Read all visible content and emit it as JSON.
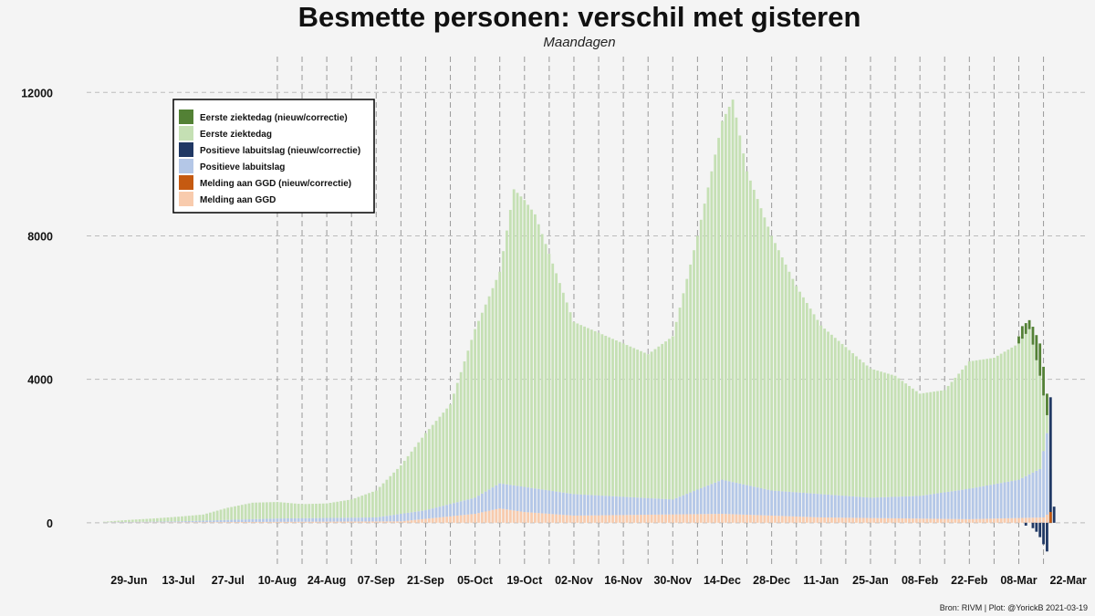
{
  "title": "Besmette personen: verschil met gisteren",
  "subtitle": "Maandagen",
  "caption": "Bron: RIVM | Plot: @YorickB  2021-03-19",
  "chart_data": {
    "type": "bar",
    "stacked": true,
    "title": "Besmette personen: verschil met gisteren",
    "subtitle": "Maandagen",
    "xlabel": "",
    "ylabel": "",
    "grid": true,
    "legend_position": "top-left",
    "x_start": "2020-06-22",
    "x_end": "2021-03-18",
    "xlim": [
      "2020-06-17",
      "2021-03-27"
    ],
    "ylim": [
      -1200,
      13000
    ],
    "yticks": [
      0,
      4000,
      8000,
      12000
    ],
    "xticks": [
      "29-Jun",
      "13-Jul",
      "27-Jul",
      "10-Aug",
      "24-Aug",
      "07-Sep",
      "21-Sep",
      "05-Oct",
      "19-Oct",
      "02-Nov",
      "16-Nov",
      "30-Nov",
      "14-Dec",
      "28-Dec",
      "11-Jan",
      "25-Jan",
      "08-Feb",
      "22-Feb",
      "08-Mar",
      "22-Mar"
    ],
    "xtick_dates": [
      "2020-06-29",
      "2020-07-13",
      "2020-07-27",
      "2020-08-10",
      "2020-08-24",
      "2020-09-07",
      "2020-09-21",
      "2020-10-05",
      "2020-10-19",
      "2020-11-02",
      "2020-11-16",
      "2020-11-30",
      "2020-12-14",
      "2020-12-28",
      "2021-01-11",
      "2021-01-25",
      "2021-02-08",
      "2021-02-22",
      "2021-03-08",
      "2021-03-22"
    ],
    "monday_lines_from": "2020-08-10",
    "legend": [
      {
        "name": "Eerste ziektedag (nieuw/correctie)",
        "color": "#538135"
      },
      {
        "name": "Eerste ziektedag",
        "color": "#c5e0b4"
      },
      {
        "name": "Positieve labuitslag (nieuw/correctie)",
        "color": "#203864"
      },
      {
        "name": "Positieve labuitslag",
        "color": "#b4c7e7"
      },
      {
        "name": "Melding aan GGD (nieuw/correctie)",
        "color": "#c55a11"
      },
      {
        "name": "Melding aan GGD",
        "color": "#f8cbad"
      }
    ],
    "total_anchors": [
      [
        "2020-06-22",
        30
      ],
      [
        "2020-06-29",
        80
      ],
      [
        "2020-07-06",
        120
      ],
      [
        "2020-07-13",
        170
      ],
      [
        "2020-07-20",
        230
      ],
      [
        "2020-07-27",
        420
      ],
      [
        "2020-08-03",
        560
      ],
      [
        "2020-08-10",
        580
      ],
      [
        "2020-08-17",
        520
      ],
      [
        "2020-08-24",
        540
      ],
      [
        "2020-08-31",
        650
      ],
      [
        "2020-09-07",
        900
      ],
      [
        "2020-09-14",
        1600
      ],
      [
        "2020-09-21",
        2500
      ],
      [
        "2020-09-28",
        3300
      ],
      [
        "2020-10-05",
        5400
      ],
      [
        "2020-10-12",
        7000
      ],
      [
        "2020-10-16",
        9300
      ],
      [
        "2020-10-19",
        9000
      ],
      [
        "2020-10-22",
        8600
      ],
      [
        "2020-10-26",
        7500
      ],
      [
        "2020-11-02",
        5600
      ],
      [
        "2020-11-09",
        5300
      ],
      [
        "2020-11-16",
        5000
      ],
      [
        "2020-11-23",
        4700
      ],
      [
        "2020-11-30",
        5200
      ],
      [
        "2020-12-07",
        8000
      ],
      [
        "2020-12-11",
        9800
      ],
      [
        "2020-12-14",
        11200
      ],
      [
        "2020-12-17",
        11800
      ],
      [
        "2020-12-21",
        9800
      ],
      [
        "2020-12-28",
        8000
      ],
      [
        "2021-01-04",
        6600
      ],
      [
        "2021-01-11",
        5500
      ],
      [
        "2021-01-18",
        4900
      ],
      [
        "2021-01-25",
        4300
      ],
      [
        "2021-02-01",
        4100
      ],
      [
        "2021-02-08",
        3600
      ],
      [
        "2021-02-15",
        3700
      ],
      [
        "2021-02-22",
        4500
      ],
      [
        "2021-03-01",
        4600
      ],
      [
        "2021-03-08",
        5000
      ],
      [
        "2021-03-11",
        5400
      ],
      [
        "2021-03-14",
        4100
      ],
      [
        "2021-03-16",
        3000
      ],
      [
        "2021-03-18",
        0
      ]
    ],
    "lab_anchors": [
      [
        "2020-06-22",
        15
      ],
      [
        "2020-07-13",
        40
      ],
      [
        "2020-08-10",
        120
      ],
      [
        "2020-09-07",
        150
      ],
      [
        "2020-09-21",
        350
      ],
      [
        "2020-10-05",
        700
      ],
      [
        "2020-10-12",
        1100
      ],
      [
        "2020-10-19",
        1000
      ],
      [
        "2020-11-02",
        800
      ],
      [
        "2020-11-30",
        650
      ],
      [
        "2020-12-14",
        1200
      ],
      [
        "2020-12-28",
        900
      ],
      [
        "2021-01-11",
        800
      ],
      [
        "2021-01-25",
        700
      ],
      [
        "2021-02-08",
        750
      ],
      [
        "2021-02-22",
        950
      ],
      [
        "2021-03-08",
        1200
      ],
      [
        "2021-03-14",
        1500
      ],
      [
        "2021-03-16",
        2500
      ],
      [
        "2021-03-17",
        3600
      ],
      [
        "2021-03-18",
        500
      ]
    ],
    "ggd_anchors": [
      [
        "2020-06-22",
        5
      ],
      [
        "2020-09-14",
        40
      ],
      [
        "2020-10-05",
        250
      ],
      [
        "2020-10-12",
        400
      ],
      [
        "2020-10-19",
        300
      ],
      [
        "2020-11-02",
        200
      ],
      [
        "2020-12-14",
        250
      ],
      [
        "2021-01-11",
        150
      ],
      [
        "2021-02-22",
        100
      ],
      [
        "2021-03-15",
        150
      ],
      [
        "2021-03-17",
        300
      ],
      [
        "2021-03-18",
        100
      ]
    ],
    "corrections_ziektedag": [
      [
        "2021-03-08",
        200
      ],
      [
        "2021-03-09",
        350
      ],
      [
        "2021-03-10",
        300
      ],
      [
        "2021-03-11",
        250
      ],
      [
        "2021-03-12",
        500
      ],
      [
        "2021-03-13",
        700
      ],
      [
        "2021-03-14",
        900
      ],
      [
        "2021-03-15",
        800
      ],
      [
        "2021-03-16",
        600
      ]
    ],
    "corrections_lab": [
      [
        "2021-03-10",
        -80
      ],
      [
        "2021-03-12",
        -150
      ],
      [
        "2021-03-13",
        -250
      ],
      [
        "2021-03-14",
        -400
      ],
      [
        "2021-03-15",
        -600
      ],
      [
        "2021-03-16",
        -800
      ],
      [
        "2021-03-17",
        3500
      ],
      [
        "2021-03-18",
        450
      ]
    ],
    "corrections_ggd": [
      [
        "2021-03-17",
        300
      ]
    ]
  }
}
